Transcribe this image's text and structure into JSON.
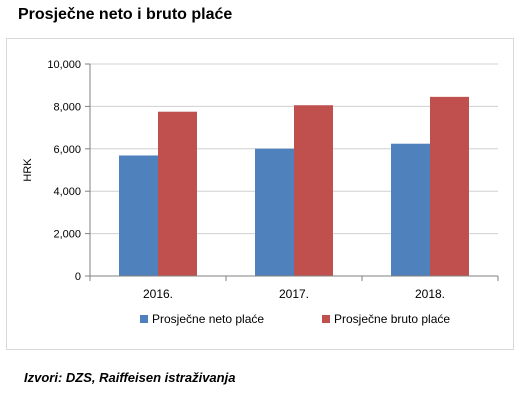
{
  "title": "Prosječne neto i bruto plaće",
  "source": "Izvori: DZS,  Raiffeisen istraživanja",
  "colors": {
    "series1": "#4f81bd",
    "series2": "#c0504d",
    "grid": "#d0d0d0",
    "axis": "#808080"
  },
  "chart_data": {
    "type": "bar",
    "title": "Prosječne neto i bruto plaće",
    "xlabel": "",
    "ylabel": "HRK",
    "categories": [
      "2016.",
      "2017.",
      "2018."
    ],
    "series": [
      {
        "name": "Prosječne neto plaće",
        "values": [
          5685,
          6005,
          6240
        ]
      },
      {
        "name": "Prosječne bruto plaće",
        "values": [
          7750,
          8055,
          8450
        ]
      }
    ],
    "ylim": [
      0,
      10000
    ],
    "yticks": [
      "0",
      "2,000",
      "4,000",
      "6,000",
      "8,000",
      "10,000"
    ],
    "grid": true,
    "legend": "bottom"
  }
}
